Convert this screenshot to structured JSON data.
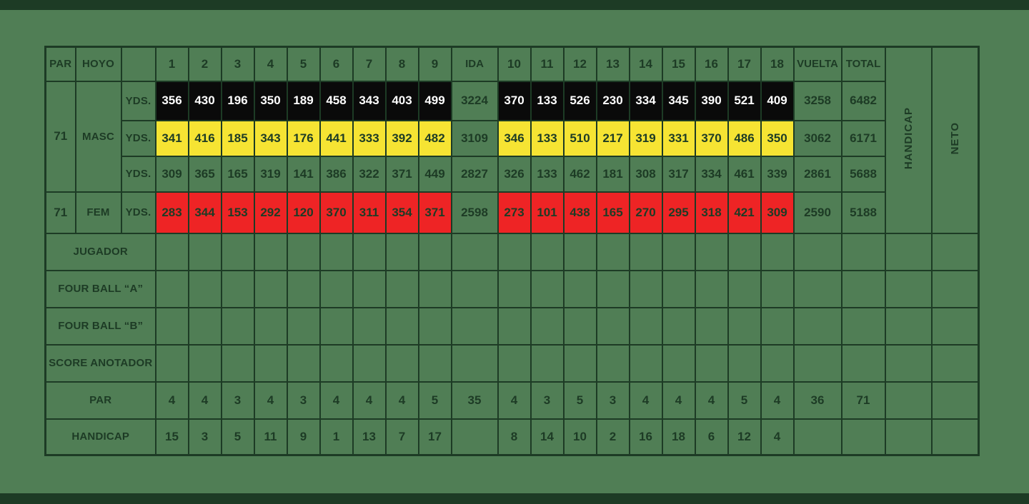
{
  "colors": {
    "background": "#507e55",
    "dark_green": "#1d3b25",
    "black_bg": "#0a0a0a",
    "black_text": "#ffffff",
    "yellow_bg": "#f6e433",
    "red_bg": "#ee2425"
  },
  "header": {
    "par": "PAR",
    "hoyo": "HOYO",
    "spacer": "",
    "front_holes": [
      "1",
      "2",
      "3",
      "4",
      "5",
      "6",
      "7",
      "8",
      "9"
    ],
    "ida": "IDA",
    "back_holes": [
      "10",
      "11",
      "12",
      "13",
      "14",
      "15",
      "16",
      "17",
      "18"
    ],
    "vuelta": "VUELTA",
    "total": "TOTAL",
    "handicap_vertical": "HANDICAP",
    "neto_vertical": "NETO"
  },
  "tee_block": {
    "masc_par": "71",
    "masc_label": "MASC",
    "fem_par": "71",
    "fem_label": "FEM",
    "yds_label": "YDS.",
    "rows": [
      {
        "style": "black",
        "front": [
          "356",
          "430",
          "196",
          "350",
          "189",
          "458",
          "343",
          "403",
          "499"
        ],
        "ida": "3224",
        "back": [
          "370",
          "133",
          "526",
          "230",
          "334",
          "345",
          "390",
          "521",
          "409"
        ],
        "vuelta": "3258",
        "total": "6482"
      },
      {
        "style": "yellow",
        "front": [
          "341",
          "416",
          "185",
          "343",
          "176",
          "441",
          "333",
          "392",
          "482"
        ],
        "ida": "3109",
        "back": [
          "346",
          "133",
          "510",
          "217",
          "319",
          "331",
          "370",
          "486",
          "350"
        ],
        "vuelta": "3062",
        "total": "6171"
      },
      {
        "style": "plain",
        "front": [
          "309",
          "365",
          "165",
          "319",
          "141",
          "386",
          "322",
          "371",
          "449"
        ],
        "ida": "2827",
        "back": [
          "326",
          "133",
          "462",
          "181",
          "308",
          "317",
          "334",
          "461",
          "339"
        ],
        "vuelta": "2861",
        "total": "5688"
      },
      {
        "style": "red",
        "front": [
          "283",
          "344",
          "153",
          "292",
          "120",
          "370",
          "311",
          "354",
          "371"
        ],
        "ida": "2598",
        "back": [
          "273",
          "101",
          "438",
          "165",
          "270",
          "295",
          "318",
          "421",
          "309"
        ],
        "vuelta": "2590",
        "total": "5188"
      }
    ]
  },
  "entry_rows": [
    {
      "label": "JUGADOR"
    },
    {
      "label": "FOUR BALL “A”"
    },
    {
      "label": "FOUR BALL “B”"
    },
    {
      "label": "SCORE ANOTADOR"
    }
  ],
  "par_row": {
    "label": "PAR",
    "front": [
      "4",
      "4",
      "3",
      "4",
      "3",
      "4",
      "4",
      "4",
      "5"
    ],
    "ida": "35",
    "back": [
      "4",
      "3",
      "5",
      "3",
      "4",
      "4",
      "4",
      "5",
      "4"
    ],
    "vuelta": "36",
    "total": "71",
    "handicap": "",
    "neto": ""
  },
  "handicap_row": {
    "label": "HANDICAP",
    "front": [
      "15",
      "3",
      "5",
      "11",
      "9",
      "1",
      "13",
      "7",
      "17"
    ],
    "ida": "",
    "back": [
      "8",
      "14",
      "10",
      "2",
      "16",
      "18",
      "6",
      "12",
      "4"
    ],
    "vuelta": "",
    "total": "",
    "handicap": "",
    "neto": ""
  }
}
